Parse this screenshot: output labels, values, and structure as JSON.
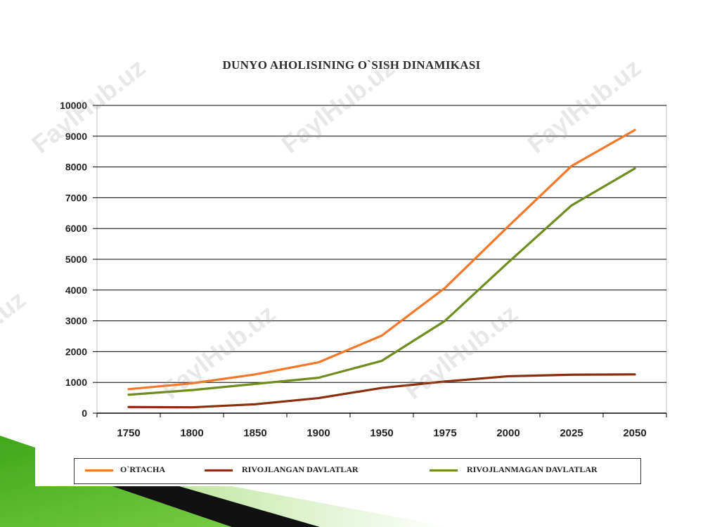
{
  "chart_data": {
    "type": "line",
    "title": "DUNYO AHOLISINING O`SISH DINAMIKASI",
    "categories": [
      "1750",
      "1800",
      "1850",
      "1900",
      "1950",
      "1975",
      "2000",
      "2025",
      "2050"
    ],
    "ylim": [
      0,
      10000
    ],
    "yticks": [
      0,
      1000,
      2000,
      3000,
      4000,
      5000,
      6000,
      7000,
      8000,
      9000,
      10000
    ],
    "grid": true,
    "legend_position": "bottom",
    "series": [
      {
        "name": "O`RTACHA",
        "color": "#f4782a",
        "values": [
          780,
          970,
          1260,
          1650,
          2520,
          4070,
          6070,
          8030,
          9200
        ]
      },
      {
        "name": "RIVOJLANGAN DAVLATLAR",
        "color": "#8b2e0e",
        "values": [
          200,
          190,
          290,
          490,
          820,
          1030,
          1200,
          1250,
          1260
        ]
      },
      {
        "name": "RIVOJLANMAGAN DAVLATLAR",
        "color": "#6f8c1e",
        "values": [
          600,
          750,
          950,
          1150,
          1700,
          3000,
          4900,
          6750,
          7950
        ]
      }
    ]
  },
  "watermark": "FaylHub.uz",
  "colors": {
    "grid": "#000000",
    "frame": "#c0c0c0",
    "slide_green": "#5fbf2a"
  }
}
